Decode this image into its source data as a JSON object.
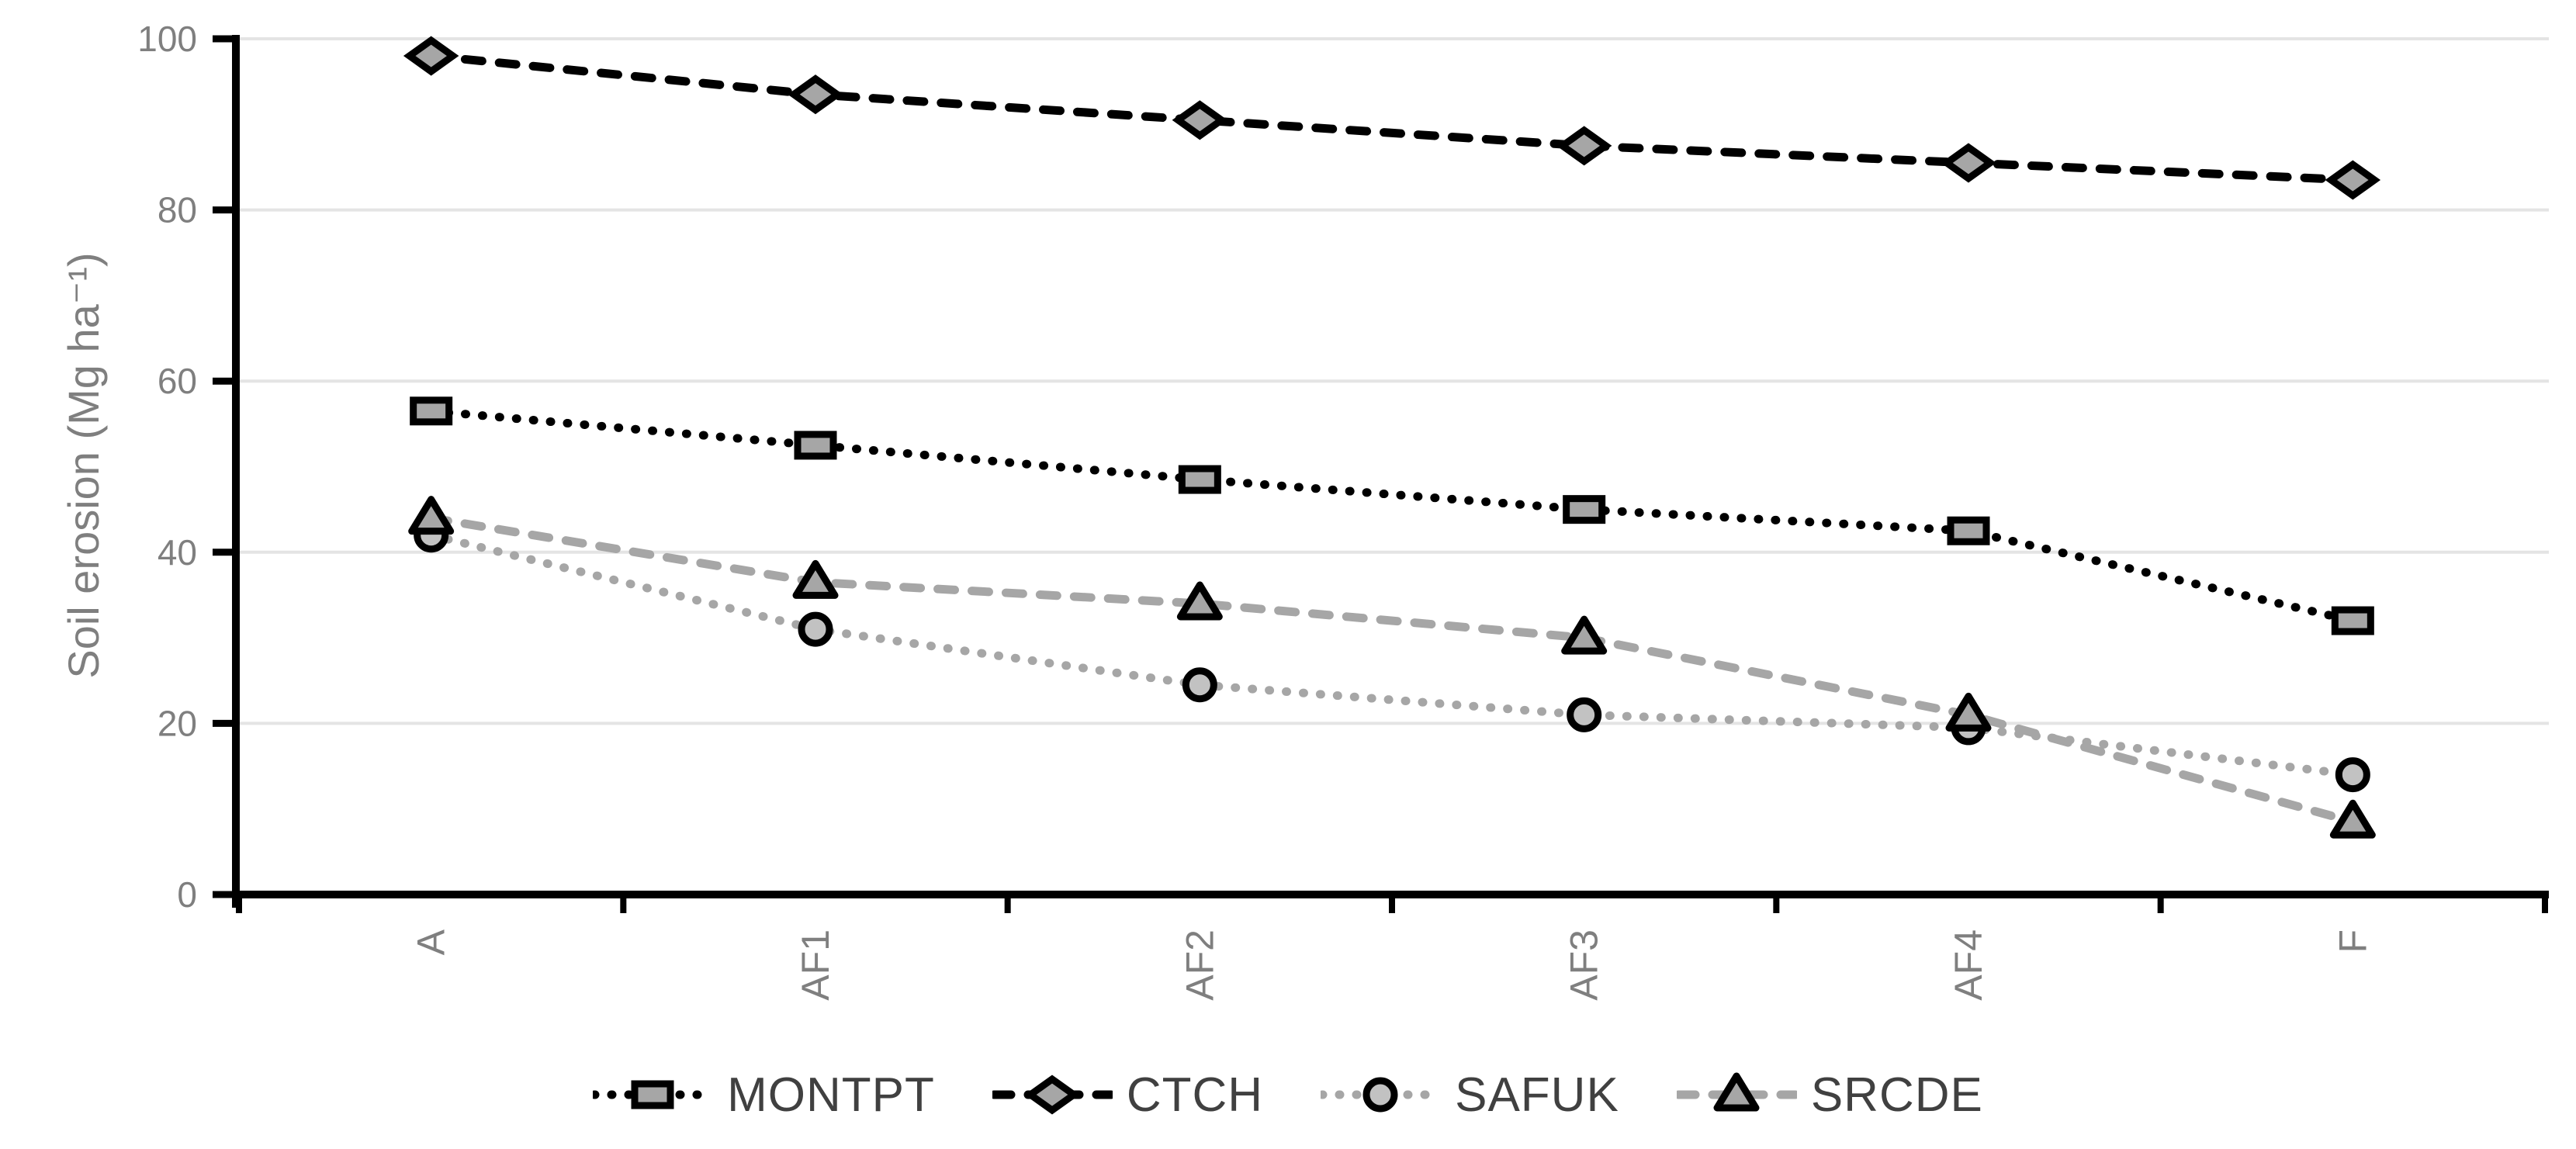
{
  "chart_data": {
    "type": "line",
    "title": "",
    "xlabel": "",
    "ylabel": "Soil erosion (Mg ha⁻¹)",
    "categories": [
      "A",
      "AF1",
      "AF2",
      "AF3",
      "AF4",
      "F"
    ],
    "series": [
      {
        "name": "MONTPT",
        "marker": "square",
        "line_style": "dotted",
        "line_color": "#000000",
        "marker_fill": "#a6a6a6",
        "values": [
          56.5,
          52.5,
          48.5,
          45,
          42.5,
          32
        ]
      },
      {
        "name": "CTCH",
        "marker": "diamond",
        "line_style": "dashed",
        "line_color": "#000000",
        "marker_fill": "#a6a6a6",
        "values": [
          98,
          93.5,
          90.5,
          87.5,
          85.5,
          83.5
        ]
      },
      {
        "name": "SAFUK",
        "marker": "circle",
        "line_style": "dotted",
        "line_color": "#a6a6a6",
        "marker_fill": "#c2c2c2",
        "values": [
          42,
          31,
          24.5,
          21,
          19.5,
          14
        ]
      },
      {
        "name": "SRCDE",
        "marker": "triangle",
        "line_style": "dashed",
        "line_color": "#a6a6a6",
        "marker_fill": "#a6a6a6",
        "values": [
          44,
          36.5,
          34,
          30,
          21,
          8.5
        ]
      }
    ],
    "ylim": [
      0,
      100
    ],
    "yticks": [
      0,
      20,
      40,
      60,
      80,
      100
    ],
    "grid": true,
    "legend_position": "bottom"
  },
  "style": {
    "background": "#ffffff",
    "axis_color": "#000000",
    "gridline_color": "#e4e4e4",
    "tick_label_color": "#7f7f7f",
    "axis_title_color": "#7f7f7f",
    "legend_text_color": "#404040",
    "marker_stroke_color": "#000000"
  }
}
